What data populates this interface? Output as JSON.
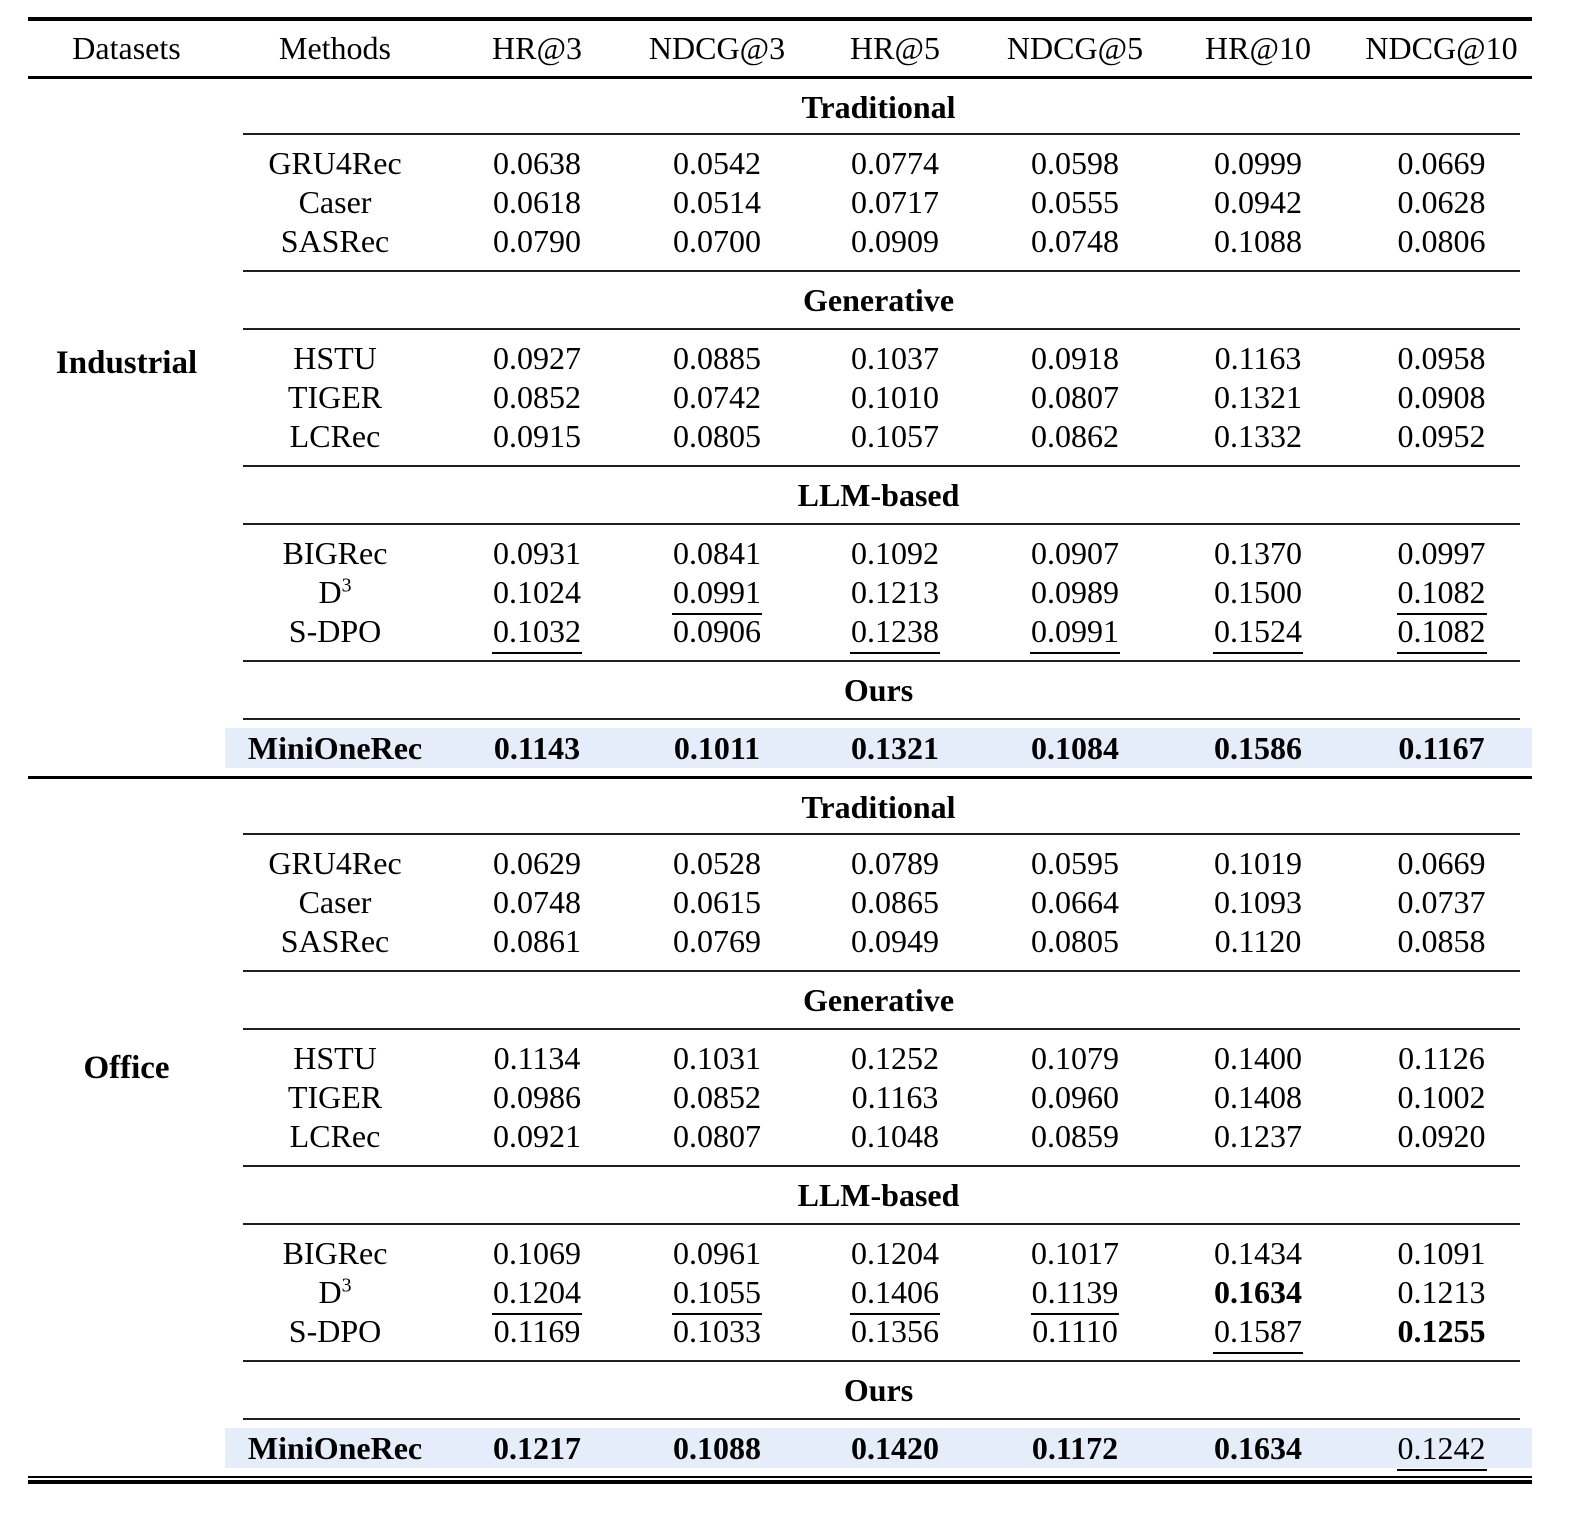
{
  "page_title": "Recommendation performance comparison table",
  "colors": {
    "highlight": "#e6edfa",
    "rule_black": "#000000",
    "rule_thin": "#1f1f1f"
  },
  "legend_semantics": {
    "bold": "best result",
    "underline": "second-best result"
  },
  "table": {
    "columns": [
      "Datasets",
      "Methods",
      "HR@3",
      "NDCG@3",
      "HR@5",
      "NDCG@5",
      "HR@10",
      "NDCG@10"
    ],
    "datasets": [
      {
        "name": "Industrial",
        "groups": [
          {
            "label": "Traditional",
            "rows": [
              {
                "method": "GRU4Rec",
                "values": [
                  "0.0638",
                  "0.0542",
                  "0.0774",
                  "0.0598",
                  "0.0999",
                  "0.0669"
                ],
                "styles": [
                  "n",
                  "n",
                  "n",
                  "n",
                  "n",
                  "n"
                ]
              },
              {
                "method": "Caser",
                "values": [
                  "0.0618",
                  "0.0514",
                  "0.0717",
                  "0.0555",
                  "0.0942",
                  "0.0628"
                ],
                "styles": [
                  "n",
                  "n",
                  "n",
                  "n",
                  "n",
                  "n"
                ]
              },
              {
                "method": "SASRec",
                "values": [
                  "0.0790",
                  "0.0700",
                  "0.0909",
                  "0.0748",
                  "0.1088",
                  "0.0806"
                ],
                "styles": [
                  "n",
                  "n",
                  "n",
                  "n",
                  "n",
                  "n"
                ]
              }
            ]
          },
          {
            "label": "Generative",
            "rows": [
              {
                "method": "HSTU",
                "values": [
                  "0.0927",
                  "0.0885",
                  "0.1037",
                  "0.0918",
                  "0.1163",
                  "0.0958"
                ],
                "styles": [
                  "n",
                  "n",
                  "n",
                  "n",
                  "n",
                  "n"
                ]
              },
              {
                "method": "TIGER",
                "values": [
                  "0.0852",
                  "0.0742",
                  "0.1010",
                  "0.0807",
                  "0.1321",
                  "0.0908"
                ],
                "styles": [
                  "n",
                  "n",
                  "n",
                  "n",
                  "n",
                  "n"
                ]
              },
              {
                "method": "LCRec",
                "values": [
                  "0.0915",
                  "0.0805",
                  "0.1057",
                  "0.0862",
                  "0.1332",
                  "0.0952"
                ],
                "styles": [
                  "n",
                  "n",
                  "n",
                  "n",
                  "n",
                  "n"
                ]
              }
            ]
          },
          {
            "label": "LLM-based",
            "rows": [
              {
                "method": "BIGRec",
                "values": [
                  "0.0931",
                  "0.0841",
                  "0.1092",
                  "0.0907",
                  "0.1370",
                  "0.0997"
                ],
                "styles": [
                  "n",
                  "n",
                  "n",
                  "n",
                  "n",
                  "n"
                ]
              },
              {
                "method": "D^3",
                "values": [
                  "0.1024",
                  "0.0991",
                  "0.1213",
                  "0.0989",
                  "0.1500",
                  "0.1082"
                ],
                "styles": [
                  "n",
                  "u",
                  "n",
                  "n",
                  "n",
                  "u"
                ]
              },
              {
                "method": "S-DPO",
                "values": [
                  "0.1032",
                  "0.0906",
                  "0.1238",
                  "0.0991",
                  "0.1524",
                  "0.1082"
                ],
                "styles": [
                  "u",
                  "n",
                  "u",
                  "u",
                  "u",
                  "u"
                ]
              }
            ]
          },
          {
            "label": "Ours",
            "rows": [
              {
                "method": "MiniOneRec",
                "highlight": true,
                "bold_method": true,
                "values": [
                  "0.1143",
                  "0.1011",
                  "0.1321",
                  "0.1084",
                  "0.1586",
                  "0.1167"
                ],
                "styles": [
                  "b",
                  "b",
                  "b",
                  "b",
                  "b",
                  "b"
                ]
              }
            ]
          }
        ]
      },
      {
        "name": "Office",
        "groups": [
          {
            "label": "Traditional",
            "rows": [
              {
                "method": "GRU4Rec",
                "values": [
                  "0.0629",
                  "0.0528",
                  "0.0789",
                  "0.0595",
                  "0.1019",
                  "0.0669"
                ],
                "styles": [
                  "n",
                  "n",
                  "n",
                  "n",
                  "n",
                  "n"
                ]
              },
              {
                "method": "Caser",
                "values": [
                  "0.0748",
                  "0.0615",
                  "0.0865",
                  "0.0664",
                  "0.1093",
                  "0.0737"
                ],
                "styles": [
                  "n",
                  "n",
                  "n",
                  "n",
                  "n",
                  "n"
                ]
              },
              {
                "method": "SASRec",
                "values": [
                  "0.0861",
                  "0.0769",
                  "0.0949",
                  "0.0805",
                  "0.1120",
                  "0.0858"
                ],
                "styles": [
                  "n",
                  "n",
                  "n",
                  "n",
                  "n",
                  "n"
                ]
              }
            ]
          },
          {
            "label": "Generative",
            "rows": [
              {
                "method": "HSTU",
                "values": [
                  "0.1134",
                  "0.1031",
                  "0.1252",
                  "0.1079",
                  "0.1400",
                  "0.1126"
                ],
                "styles": [
                  "n",
                  "n",
                  "n",
                  "n",
                  "n",
                  "n"
                ]
              },
              {
                "method": "TIGER",
                "values": [
                  "0.0986",
                  "0.0852",
                  "0.1163",
                  "0.0960",
                  "0.1408",
                  "0.1002"
                ],
                "styles": [
                  "n",
                  "n",
                  "n",
                  "n",
                  "n",
                  "n"
                ]
              },
              {
                "method": "LCRec",
                "values": [
                  "0.0921",
                  "0.0807",
                  "0.1048",
                  "0.0859",
                  "0.1237",
                  "0.0920"
                ],
                "styles": [
                  "n",
                  "n",
                  "n",
                  "n",
                  "n",
                  "n"
                ]
              }
            ]
          },
          {
            "label": "LLM-based",
            "rows": [
              {
                "method": "BIGRec",
                "values": [
                  "0.1069",
                  "0.0961",
                  "0.1204",
                  "0.1017",
                  "0.1434",
                  "0.1091"
                ],
                "styles": [
                  "n",
                  "n",
                  "n",
                  "n",
                  "n",
                  "n"
                ]
              },
              {
                "method": "D^3",
                "values": [
                  "0.1204",
                  "0.1055",
                  "0.1406",
                  "0.1139",
                  "0.1634",
                  "0.1213"
                ],
                "styles": [
                  "u",
                  "u",
                  "u",
                  "u",
                  "b",
                  "n"
                ]
              },
              {
                "method": "S-DPO",
                "values": [
                  "0.1169",
                  "0.1033",
                  "0.1356",
                  "0.1110",
                  "0.1587",
                  "0.1255"
                ],
                "styles": [
                  "n",
                  "n",
                  "n",
                  "n",
                  "u",
                  "b"
                ]
              }
            ]
          },
          {
            "label": "Ours",
            "rows": [
              {
                "method": "MiniOneRec",
                "highlight": true,
                "bold_method": true,
                "values": [
                  "0.1217",
                  "0.1088",
                  "0.1420",
                  "0.1172",
                  "0.1634",
                  "0.1242"
                ],
                "styles": [
                  "b",
                  "b",
                  "b",
                  "b",
                  "b",
                  "u"
                ]
              }
            ]
          }
        ]
      }
    ]
  }
}
